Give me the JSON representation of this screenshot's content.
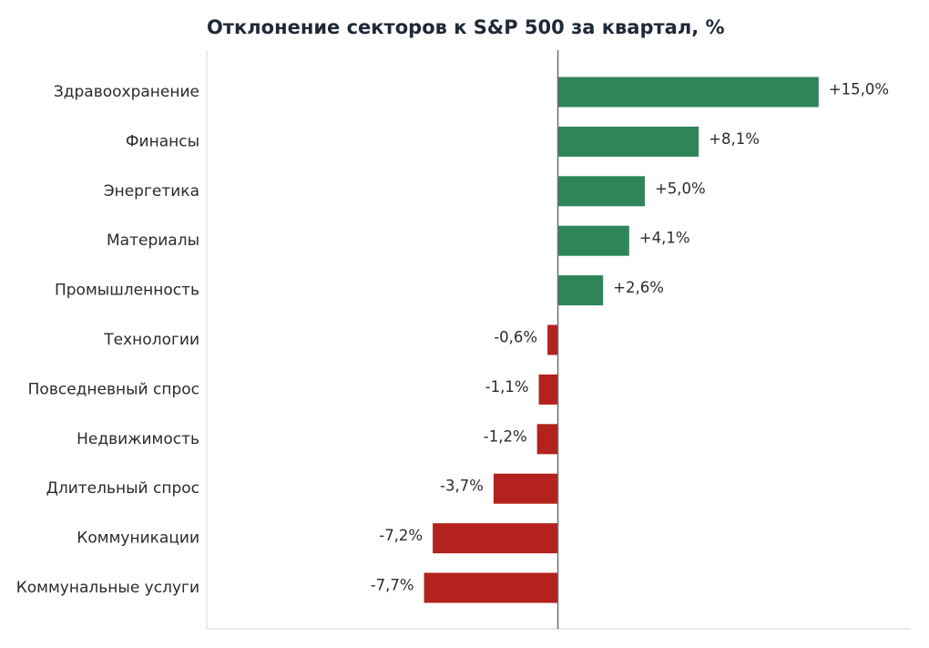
{
  "chart_data": {
    "type": "bar",
    "orientation": "horizontal",
    "title": "Отклонение секторов к S&P 500 за квартал, %",
    "xlabel": "",
    "ylabel": "",
    "categories": [
      "Здравоохранение",
      "Финансы",
      "Энергетика",
      "Материалы",
      "Промышленность",
      "Технологии",
      "Повседневный спрос",
      "Недвижимость",
      "Длительный спрос",
      "Коммуникации",
      "Коммунальные услуги"
    ],
    "values": [
      15.0,
      8.1,
      5.0,
      4.1,
      2.6,
      -0.6,
      -1.1,
      -1.2,
      -3.7,
      -7.2,
      -7.7
    ],
    "value_labels": [
      "+15,0%",
      "+8,1%",
      "+5,0%",
      "+4,1%",
      "+2,6%",
      "-0,6%",
      "-1,1%",
      "-1,2%",
      "-3,7%",
      "-7,2%",
      "-7,7%"
    ],
    "xlim": [
      -20.2,
      20.3
    ],
    "grid": false,
    "legend": "none",
    "colors": {
      "positive": "#2e855a",
      "negative": "#b3221c",
      "zero_line": "#6e6e6e",
      "axis": "#e4e4e4",
      "text": "#2b2b2b",
      "title": "#1f2937"
    }
  }
}
